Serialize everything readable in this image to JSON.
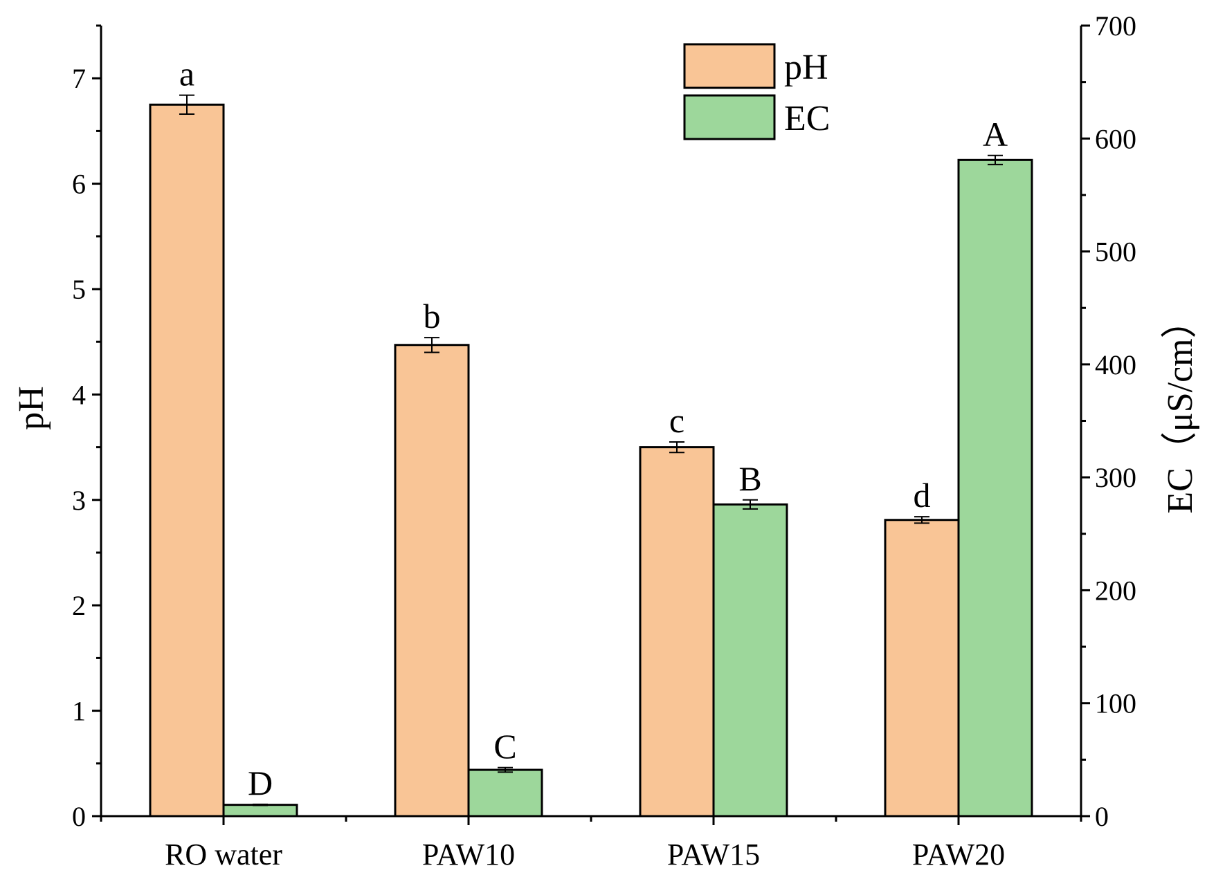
{
  "chart_data": {
    "type": "bar",
    "categories": [
      "RO water",
      "PAW10",
      "PAW15",
      "PAW20"
    ],
    "series": [
      {
        "name": "pH",
        "axis": "left",
        "color": "#F9C596",
        "values": [
          6.75,
          4.47,
          3.5,
          2.81
        ],
        "errors": [
          0.09,
          0.07,
          0.05,
          0.03
        ],
        "letters": [
          "a",
          "b",
          "c",
          "d"
        ]
      },
      {
        "name": "EC",
        "axis": "right",
        "color": "#9DD79B",
        "values": [
          10,
          41,
          276,
          581
        ],
        "errors": [
          0.5,
          2,
          4,
          4
        ],
        "letters": [
          "D",
          "C",
          "B",
          "A"
        ]
      }
    ],
    "ylabel_left": "pH",
    "ylabel_right": "EC（μS/cm）",
    "ylim_left": [
      0,
      7.5
    ],
    "ylim_right": [
      0,
      700
    ],
    "yticks_left": [
      "0",
      "1",
      "2",
      "3",
      "4",
      "5",
      "6",
      "7"
    ],
    "yticks_right": [
      "0",
      "100",
      "200",
      "300",
      "400",
      "500",
      "600",
      "700"
    ],
    "legend": {
      "placement": "top-center",
      "entries": [
        "pH",
        "EC"
      ]
    },
    "grid": false
  }
}
